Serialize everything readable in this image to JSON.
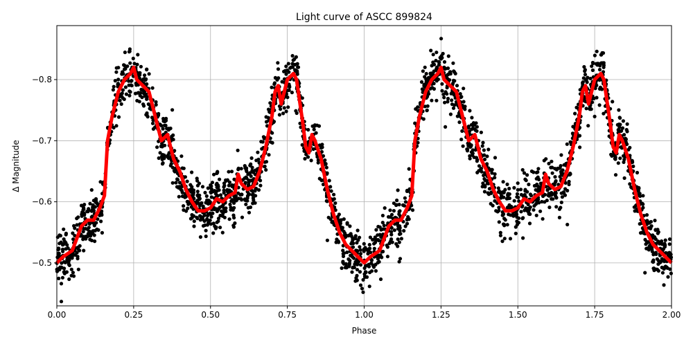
{
  "chart_data": {
    "type": "scatter",
    "title": "Light curve of ASCC 899824",
    "xlabel": "Phase",
    "ylabel": "Δ Magnitude",
    "xlim": [
      0.0,
      2.0
    ],
    "ylim": [
      -0.43,
      -0.888
    ],
    "y_inverted": true,
    "grid": true,
    "xticks": [
      "0.00",
      "0.25",
      "0.50",
      "0.75",
      "1.00",
      "1.25",
      "1.50",
      "1.75",
      "2.00"
    ],
    "xtick_values": [
      0,
      0.25,
      0.5,
      0.75,
      1,
      1.25,
      1.5,
      1.75,
      2
    ],
    "yticks": [
      "−0.8",
      "−0.7",
      "−0.6",
      "−0.5"
    ],
    "ytick_values": [
      -0.8,
      -0.7,
      -0.6,
      -0.5
    ],
    "colors": {
      "points": "#000000",
      "curve": "#ff0000",
      "grid": "#b0b0b0"
    },
    "series": [
      {
        "type": "scatter",
        "description_spread": 0.06
      },
      {
        "type": "line",
        "x": [
          0.0,
          0.02,
          0.05,
          0.08,
          0.1,
          0.12,
          0.14,
          0.155,
          0.165,
          0.18,
          0.2,
          0.22,
          0.24,
          0.25,
          0.26,
          0.28,
          0.3,
          0.32,
          0.34,
          0.36,
          0.38,
          0.4,
          0.42,
          0.44,
          0.46,
          0.48,
          0.5,
          0.52,
          0.54,
          0.56,
          0.58,
          0.59,
          0.6,
          0.62,
          0.64,
          0.66,
          0.68,
          0.7,
          0.71,
          0.72,
          0.73,
          0.75,
          0.77,
          0.78,
          0.8,
          0.81,
          0.82,
          0.83,
          0.84,
          0.86,
          0.88,
          0.9,
          0.92,
          0.94,
          0.96,
          0.98,
          1.0,
          1.02,
          1.05,
          1.08,
          1.1,
          1.12,
          1.14,
          1.155,
          1.165,
          1.18,
          1.2,
          1.22,
          1.24,
          1.25,
          1.26,
          1.28,
          1.3,
          1.32,
          1.34,
          1.36,
          1.38,
          1.4,
          1.42,
          1.44,
          1.46,
          1.48,
          1.5,
          1.52,
          1.54,
          1.56,
          1.58,
          1.59,
          1.6,
          1.62,
          1.64,
          1.66,
          1.68,
          1.7,
          1.71,
          1.72,
          1.73,
          1.75,
          1.77,
          1.78,
          1.8,
          1.81,
          1.82,
          1.83,
          1.84,
          1.86,
          1.88,
          1.9,
          1.92,
          1.94,
          1.96,
          1.98,
          2.0
        ],
        "y": [
          -0.5,
          -0.51,
          -0.52,
          -0.56,
          -0.57,
          -0.57,
          -0.59,
          -0.61,
          -0.7,
          -0.74,
          -0.78,
          -0.8,
          -0.81,
          -0.82,
          -0.8,
          -0.79,
          -0.78,
          -0.74,
          -0.7,
          -0.71,
          -0.67,
          -0.65,
          -0.62,
          -0.6,
          -0.585,
          -0.585,
          -0.59,
          -0.605,
          -0.6,
          -0.61,
          -0.615,
          -0.645,
          -0.63,
          -0.62,
          -0.625,
          -0.65,
          -0.69,
          -0.74,
          -0.78,
          -0.79,
          -0.76,
          -0.8,
          -0.81,
          -0.8,
          -0.73,
          -0.69,
          -0.68,
          -0.71,
          -0.7,
          -0.67,
          -0.62,
          -0.58,
          -0.55,
          -0.53,
          -0.52,
          -0.51,
          -0.5,
          -0.51,
          -0.52,
          -0.56,
          -0.57,
          -0.57,
          -0.59,
          -0.61,
          -0.7,
          -0.74,
          -0.78,
          -0.8,
          -0.81,
          -0.82,
          -0.8,
          -0.79,
          -0.78,
          -0.74,
          -0.7,
          -0.71,
          -0.67,
          -0.65,
          -0.62,
          -0.6,
          -0.585,
          -0.585,
          -0.59,
          -0.605,
          -0.6,
          -0.61,
          -0.615,
          -0.645,
          -0.63,
          -0.62,
          -0.625,
          -0.65,
          -0.69,
          -0.74,
          -0.78,
          -0.79,
          -0.76,
          -0.8,
          -0.81,
          -0.8,
          -0.73,
          -0.69,
          -0.68,
          -0.71,
          -0.7,
          -0.67,
          -0.62,
          -0.58,
          -0.55,
          -0.53,
          -0.52,
          -0.51,
          -0.5
        ]
      }
    ]
  }
}
